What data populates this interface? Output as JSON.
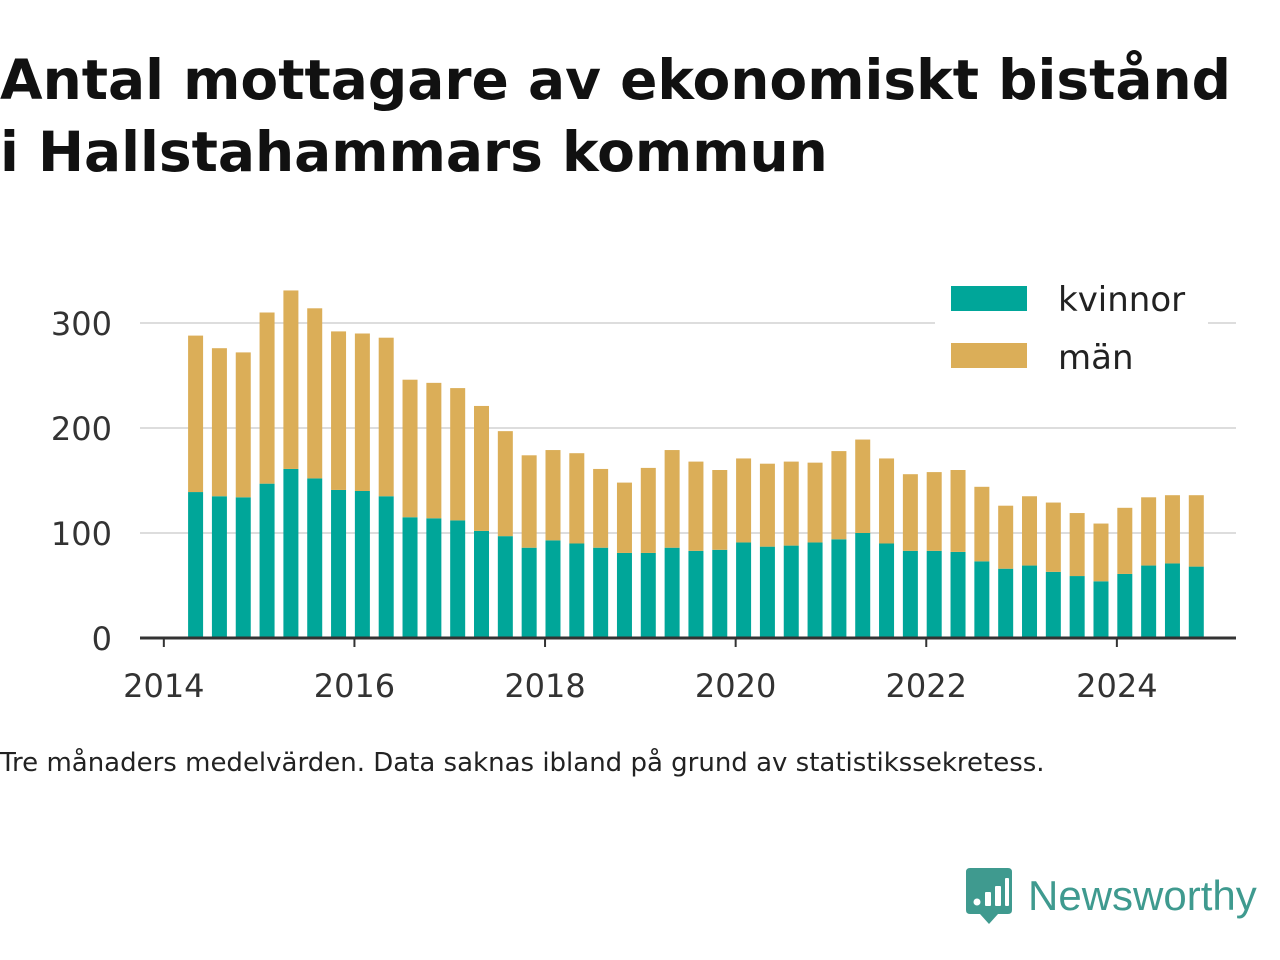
{
  "title_lines": [
    "Antal mottagare av ekonomiskt bistånd",
    "i Hallstahammars kommun"
  ],
  "note": "Tre månaders medelvärden. Data saknas ibland på grund av statistikssekretess.",
  "brand": {
    "name": "Newsworthy",
    "icon": "newsworthy-logo-icon",
    "color": "#3f9a8f"
  },
  "colors": {
    "kvinnor": "#00a699",
    "man": "#dbae58",
    "grid": "#dddddd",
    "axis": "#333333"
  },
  "chart_data": {
    "type": "bar",
    "stacked": true,
    "x_tick_labels": [
      "2014",
      "2016",
      "2018",
      "2020",
      "2022",
      "2024"
    ],
    "y_tick_labels": [
      "0",
      "100",
      "200",
      "300"
    ],
    "xlim": [
      "2013-10",
      "2025-04"
    ],
    "ylim": [
      0,
      330
    ],
    "grid": true,
    "legend_position": "top-right",
    "x": [
      "2014-05",
      "2014-08",
      "2014-11",
      "2015-02",
      "2015-05",
      "2015-08",
      "2015-11",
      "2016-02",
      "2016-05",
      "2016-08",
      "2016-11",
      "2017-02",
      "2017-05",
      "2017-08",
      "2017-11",
      "2018-02",
      "2018-05",
      "2018-08",
      "2018-11",
      "2019-02",
      "2019-05",
      "2019-08",
      "2019-11",
      "2020-02",
      "2020-05",
      "2020-08",
      "2020-11",
      "2021-02",
      "2021-05",
      "2021-08",
      "2021-11",
      "2022-02",
      "2022-05",
      "2022-08",
      "2022-11",
      "2023-02",
      "2023-05",
      "2023-08",
      "2023-11",
      "2024-02",
      "2024-05",
      "2024-08",
      "2024-11"
    ],
    "series": [
      {
        "name": "kvinnor",
        "values": [
          139,
          135,
          134,
          147,
          161,
          152,
          141,
          140,
          135,
          115,
          114,
          112,
          102,
          97,
          86,
          93,
          90,
          86,
          81,
          81,
          86,
          83,
          84,
          91,
          87,
          88,
          91,
          94,
          100,
          90,
          83,
          83,
          82,
          73,
          66,
          69,
          63,
          59,
          54,
          61,
          69,
          71,
          68
        ]
      },
      {
        "name": "män",
        "values": [
          149,
          141,
          138,
          163,
          170,
          162,
          151,
          150,
          151,
          131,
          129,
          126,
          119,
          100,
          88,
          86,
          86,
          75,
          67,
          81,
          93,
          85,
          76,
          80,
          79,
          80,
          76,
          84,
          89,
          81,
          73,
          75,
          78,
          71,
          60,
          66,
          66,
          60,
          55,
          63,
          65,
          65,
          68
        ]
      }
    ]
  }
}
